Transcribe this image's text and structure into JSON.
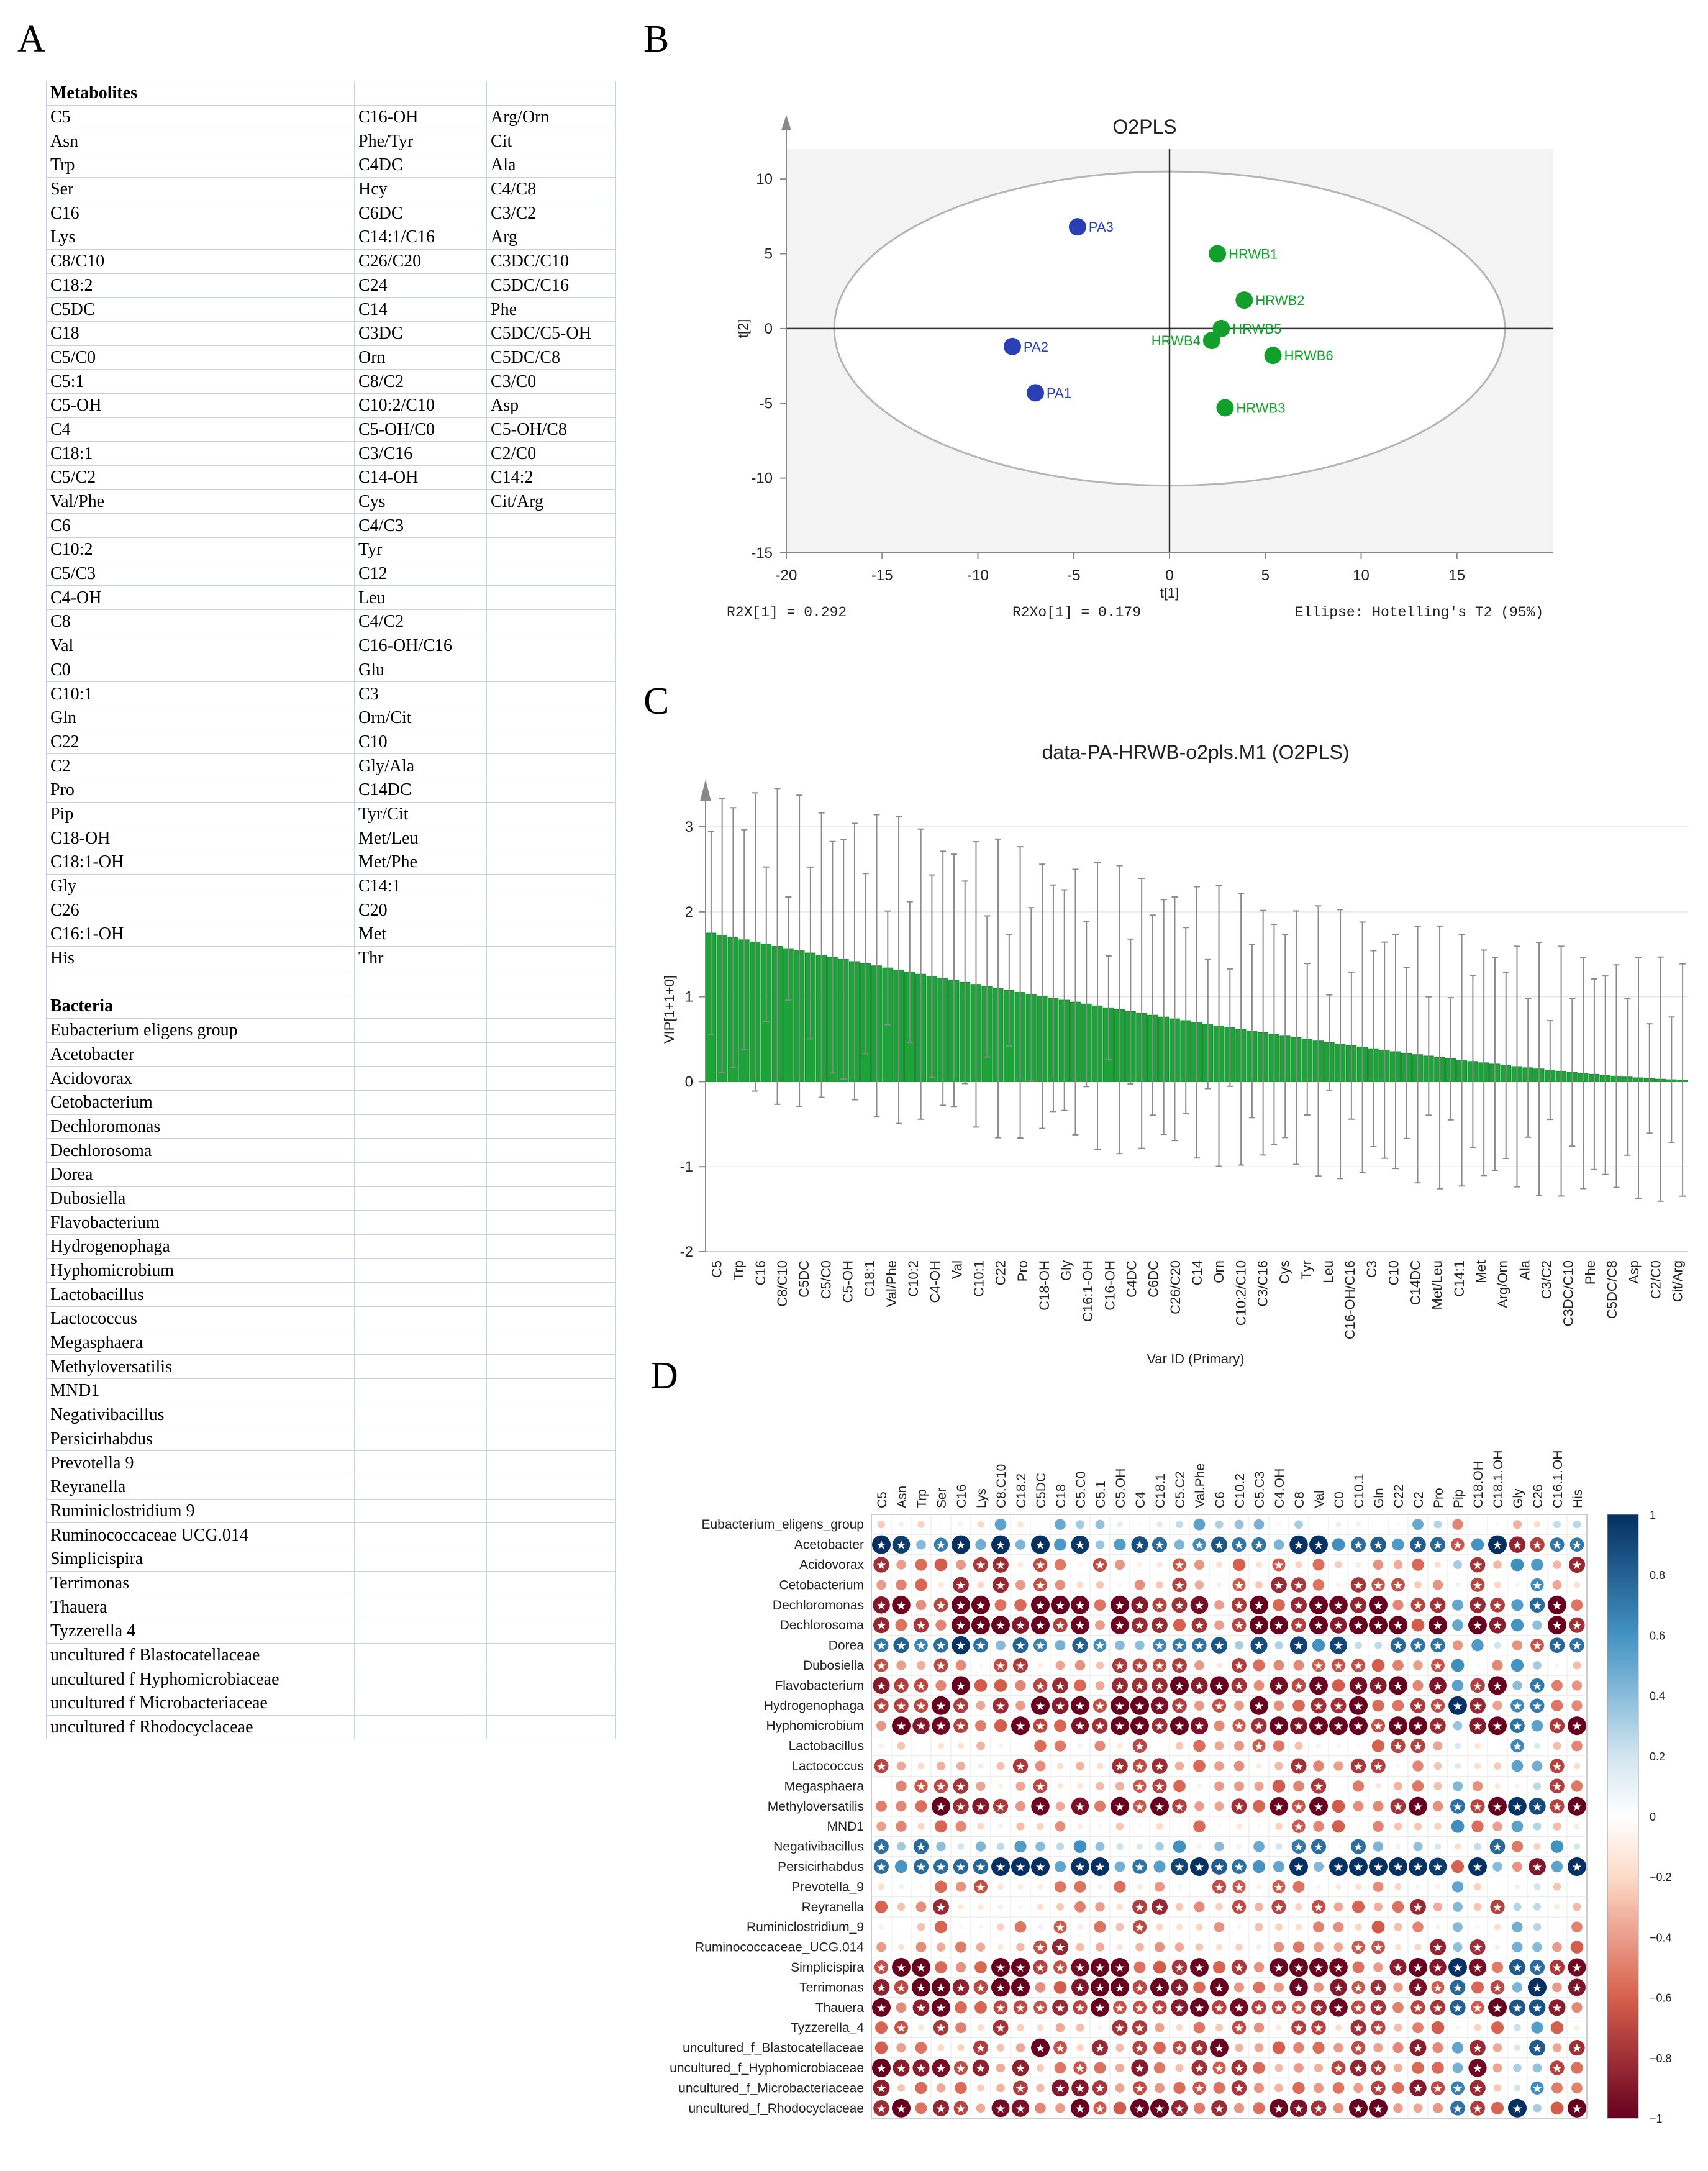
{
  "panels": {
    "a": "A",
    "b": "B",
    "c": "C",
    "d": "D"
  },
  "table": {
    "metabolites_heading": "Metabolites",
    "metabolites": [
      [
        "C5",
        "C16-OH",
        "Arg/Orn"
      ],
      [
        "Asn",
        "Phe/Tyr",
        "Cit"
      ],
      [
        "Trp",
        "C4DC",
        "Ala"
      ],
      [
        "Ser",
        "Hcy",
        "C4/C8"
      ],
      [
        "C16",
        "C6DC",
        "C3/C2"
      ],
      [
        "Lys",
        "C14:1/C16",
        "Arg"
      ],
      [
        "C8/C10",
        "C26/C20",
        "C3DC/C10"
      ],
      [
        "C18:2",
        "C24",
        "C5DC/C16"
      ],
      [
        "C5DC",
        "C14",
        "Phe"
      ],
      [
        "C18",
        "C3DC",
        "C5DC/C5-OH"
      ],
      [
        "C5/C0",
        "Orn",
        "C5DC/C8"
      ],
      [
        "C5:1",
        "C8/C2",
        "C3/C0"
      ],
      [
        "C5-OH",
        "C10:2/C10",
        "Asp"
      ],
      [
        "C4",
        "C5-OH/C0",
        "C5-OH/C8"
      ],
      [
        "C18:1",
        "C3/C16",
        "C2/C0"
      ],
      [
        "C5/C2",
        "C14-OH",
        "C14:2"
      ],
      [
        "Val/Phe",
        "Cys",
        "Cit/Arg"
      ],
      [
        "C6",
        "C4/C3",
        ""
      ],
      [
        "C10:2",
        "Tyr",
        ""
      ],
      [
        "C5/C3",
        "C12",
        ""
      ],
      [
        "C4-OH",
        "Leu",
        ""
      ],
      [
        "C8",
        "C4/C2",
        ""
      ],
      [
        "Val",
        "C16-OH/C16",
        ""
      ],
      [
        "C0",
        "Glu",
        ""
      ],
      [
        "C10:1",
        "C3",
        ""
      ],
      [
        "Gln",
        "Orn/Cit",
        ""
      ],
      [
        "C22",
        "C10",
        ""
      ],
      [
        "C2",
        "Gly/Ala",
        ""
      ],
      [
        "Pro",
        "C14DC",
        ""
      ],
      [
        "Pip",
        "Tyr/Cit",
        ""
      ],
      [
        "C18-OH",
        "Met/Leu",
        ""
      ],
      [
        "C18:1-OH",
        "Met/Phe",
        ""
      ],
      [
        "Gly",
        "C14:1",
        ""
      ],
      [
        "C26",
        "C20",
        ""
      ],
      [
        "C16:1-OH",
        "Met",
        ""
      ],
      [
        "His",
        "Thr",
        ""
      ]
    ],
    "bacteria_heading": "Bacteria",
    "bacteria": [
      "Eubacterium  eligens  group",
      "Acetobacter",
      "Acidovorax",
      "Cetobacterium",
      "Dechloromonas",
      "Dechlorosoma",
      "Dorea",
      "Dubosiella",
      "Flavobacterium",
      "Hydrogenophaga",
      "Hyphomicrobium",
      "Lactobacillus",
      "Lactococcus",
      "Megasphaera",
      "Methyloversatilis",
      "MND1",
      "Negativibacillus",
      "Persicirhabdus",
      "Prevotella  9",
      "Reyranella",
      "Ruminiclostridium  9",
      "Ruminococcaceae  UCG.014",
      "Simplicispira",
      "Terrimonas",
      "Thauera",
      "Tyzzerella  4",
      "uncultured  f  Blastocatellaceae",
      "uncultured  f  Hyphomicrobiaceae",
      "uncultured  f  Microbacteriaceae",
      "uncultured  f  Rhodocyclaceae"
    ]
  },
  "chart_data": [
    {
      "type": "scatter",
      "title": "O2PLS",
      "xlabel": "t[1]",
      "ylabel": "t[2]",
      "xlim": [
        -20,
        20
      ],
      "ylim": [
        -15,
        12
      ],
      "xticks": [
        "-20",
        "-15",
        "-10",
        "-5",
        "0",
        "5",
        "10",
        "15"
      ],
      "yticks": [
        "10",
        "5",
        "0",
        "-5",
        "-10",
        "-15"
      ],
      "series": [
        {
          "name": "PA",
          "color": "#2a3fb4",
          "points": [
            {
              "label": "PA3",
              "x": -4.8,
              "y": 6.8
            },
            {
              "label": "PA2",
              "x": -8.2,
              "y": -1.2
            },
            {
              "label": "PA1",
              "x": -7.0,
              "y": -4.3
            }
          ]
        },
        {
          "name": "HRWB",
          "color": "#12a02c",
          "points": [
            {
              "label": "HRWB1",
              "x": 2.5,
              "y": 5.0
            },
            {
              "label": "HRWB2",
              "x": 3.9,
              "y": 1.9
            },
            {
              "label": "HRWB5",
              "x": 2.7,
              "y": 0.0
            },
            {
              "label": "HRWB4",
              "x": 2.2,
              "y": -0.8
            },
            {
              "label": "HRWB6",
              "x": 5.4,
              "y": -1.8
            },
            {
              "label": "HRWB3",
              "x": 2.9,
              "y": -5.3
            }
          ]
        }
      ],
      "footer": {
        "left": "R2X[1] = 0.292",
        "middle": "R2Xo[1] = 0.179",
        "right": "Ellipse: Hotelling's T2 (95%)"
      }
    },
    {
      "type": "bar",
      "title": "data-PA-HRWB-o2pls.M1 (O2PLS)",
      "ylabel": "VIP[1+1+0]",
      "xlabel": "Var ID (Primary)",
      "ylim": [
        -2,
        3.3
      ],
      "yticks": [
        "3",
        "2",
        "1",
        "0",
        "-1",
        "-2"
      ],
      "tick_labels": [
        "C5",
        "Trp",
        "C16",
        "C8/C10",
        "C5DC",
        "C5/C0",
        "C5-OH",
        "C18:1",
        "Val/Phe",
        "C10:2",
        "C4-OH",
        "Val",
        "C10:1",
        "C22",
        "Pro",
        "C18-OH",
        "Gly",
        "C16:1-OH",
        "C16-OH",
        "C4DC",
        "C6DC",
        "C26/C20",
        "C14",
        "Orn",
        "C10:2/C10",
        "C3/C16",
        "Cys",
        "Tyr",
        "Leu",
        "C16-OH/C16",
        "C3",
        "C10",
        "C14DC",
        "Met/Leu",
        "C14:1",
        "Met",
        "Arg/Orn",
        "Ala",
        "C3/C2",
        "C3DC/C10",
        "Phe",
        "C5DC/C8",
        "Asp",
        "C2/C0",
        "Cit/Arg"
      ],
      "n_bars": 89,
      "max_value": 1.75,
      "min_value": 0.02
    },
    {
      "type": "heatmap",
      "rows": [
        "Eubacterium_eligens_group",
        "Acetobacter",
        "Acidovorax",
        "Cetobacterium",
        "Dechloromonas",
        "Dechlorosoma",
        "Dorea",
        "Dubosiella",
        "Flavobacterium",
        "Hydrogenophaga",
        "Hyphomicrobium",
        "Lactobacillus",
        "Lactococcus",
        "Megasphaera",
        "Methyloversatilis",
        "MND1",
        "Negativibacillus",
        "Persicirhabdus",
        "Prevotella_9",
        "Reyranella",
        "Ruminiclostridium_9",
        "Ruminococcaceae_UCG.014",
        "Simplicispira",
        "Terrimonas",
        "Thauera",
        "Tyzzerella_4",
        "uncultured_f_Blastocatellaceae",
        "uncultured_f_Hyphomicrobiaceae",
        "uncultured_f_Microbacteriaceae",
        "uncultured_f_Rhodocyclaceae"
      ],
      "columns": [
        "C5",
        "Asn",
        "Trp",
        "Ser",
        "C16",
        "Lys",
        "C8.C10",
        "C18.2",
        "C5DC",
        "C18",
        "C5.C0",
        "C5.1",
        "C5.OH",
        "C4",
        "C18.1",
        "C5.C2",
        "Val.Phe",
        "C6",
        "C10.2",
        "C5.C3",
        "C4.OH",
        "C8",
        "Val",
        "C0",
        "C10.1",
        "Gln",
        "C22",
        "C2",
        "Pro",
        "Pip",
        "C18.OH",
        "C18.1.OH",
        "Gly",
        "C26",
        "C16.1.OH",
        "His"
      ],
      "colorbar_ticks": [
        "1",
        "0.8",
        "0.6",
        "0.4",
        "0.2",
        "0",
        "−0.2",
        "−0.4",
        "−0.6",
        "−0.8",
        "−1"
      ],
      "row_bias": [
        0.15,
        0.75,
        -0.45,
        -0.45,
        -0.8,
        -0.8,
        0.6,
        -0.4,
        -0.75,
        -0.75,
        -0.8,
        -0.35,
        -0.45,
        -0.4,
        -0.75,
        -0.35,
        0.4,
        0.8,
        -0.3,
        -0.45,
        -0.3,
        -0.45,
        -0.8,
        -0.8,
        -0.8,
        -0.45,
        -0.6,
        -0.6,
        -0.6,
        -0.75
      ]
    }
  ]
}
